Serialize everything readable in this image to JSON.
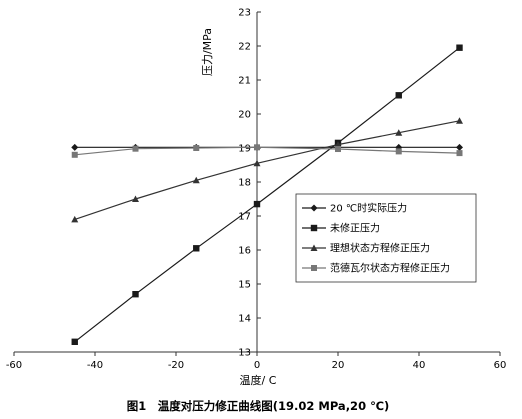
{
  "chart_data": {
    "type": "line",
    "caption": "图1　温度对压力修正曲线图(19.02 MPa,20 ℃)",
    "xlabel": "温度/ C",
    "ylabel": "压力/MPa",
    "xlim": [
      -60,
      60
    ],
    "ylim": [
      13,
      23
    ],
    "x_ticks": [
      -60,
      -40,
      -20,
      0,
      20,
      40,
      60
    ],
    "y_ticks": [
      13,
      14,
      15,
      16,
      17,
      18,
      19,
      20,
      21,
      22,
      23
    ],
    "grid": false,
    "legend_position": "center-right",
    "series": [
      {
        "name": "20 ℃时实际压力",
        "marker": "diamond",
        "color": "#1a1a1a",
        "points": [
          [
            -45,
            19.02
          ],
          [
            -30,
            19.02
          ],
          [
            -15,
            19.02
          ],
          [
            0,
            19.02
          ],
          [
            20,
            19.02
          ],
          [
            35,
            19.02
          ],
          [
            50,
            19.02
          ]
        ]
      },
      {
        "name": "未修正压力",
        "marker": "square",
        "color": "#1a1a1a",
        "points": [
          [
            -45,
            13.3
          ],
          [
            -30,
            14.7
          ],
          [
            -15,
            16.05
          ],
          [
            0,
            17.35
          ],
          [
            20,
            19.15
          ],
          [
            35,
            20.55
          ],
          [
            50,
            21.95
          ]
        ]
      },
      {
        "name": "理想状态方程修正压力",
        "marker": "triangle",
        "color": "#333333",
        "points": [
          [
            -45,
            16.9
          ],
          [
            -30,
            17.5
          ],
          [
            -15,
            18.05
          ],
          [
            0,
            18.55
          ],
          [
            20,
            19.1
          ],
          [
            35,
            19.45
          ],
          [
            50,
            19.8
          ]
        ]
      },
      {
        "name": "范德瓦尔状态方程修正压力",
        "marker": "square-gray",
        "color": "#777777",
        "points": [
          [
            -45,
            18.8
          ],
          [
            -30,
            18.98
          ],
          [
            -15,
            19.0
          ],
          [
            0,
            19.02
          ],
          [
            20,
            18.97
          ],
          [
            35,
            18.9
          ],
          [
            50,
            18.85
          ]
        ]
      }
    ]
  }
}
